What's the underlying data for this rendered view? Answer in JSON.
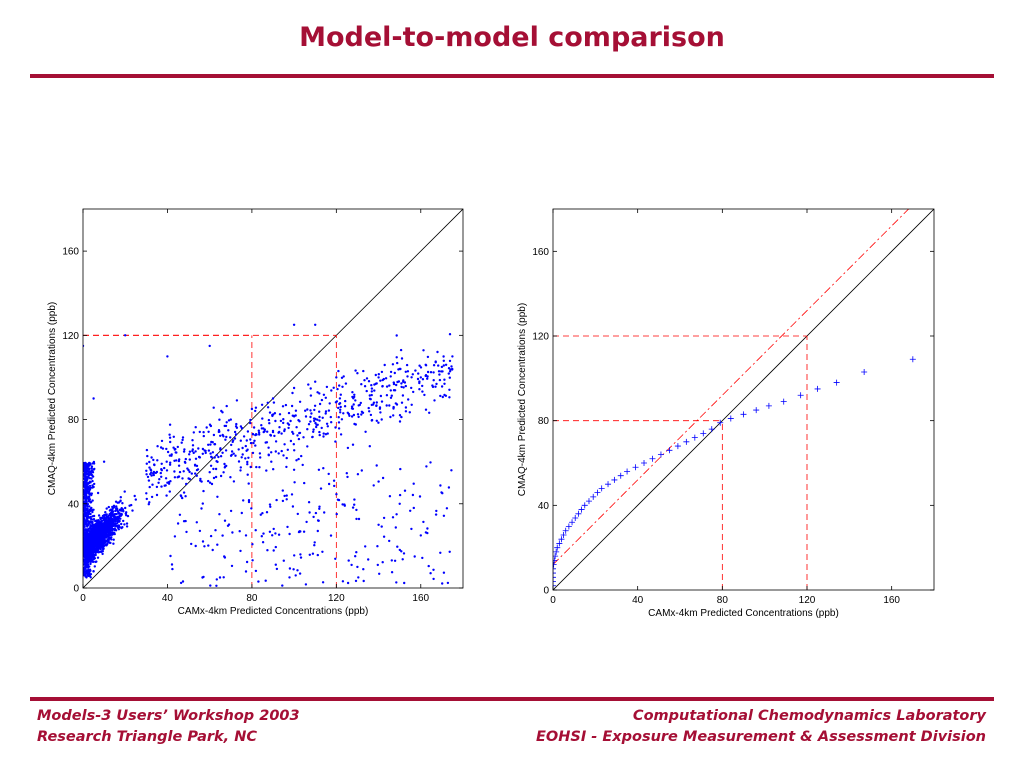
{
  "slide": {
    "title": "Model-to-model comparison",
    "footer_left": [
      "Models-3 Users’ Workshop 2003",
      "Research Triangle Park, NC"
    ],
    "footer_right": [
      "Computational Chemodynamics Laboratory",
      "EOHSI - Exposure Measurement & Assessment Division"
    ],
    "accent_color": "#a50f35"
  },
  "chart_data": [
    {
      "type": "scatter",
      "xlabel": "CAMx-4km Predicted Concentrations (ppb)",
      "ylabel": "CMAQ-4km Predicted Concentrations (ppb)",
      "xlim": [
        0,
        180
      ],
      "ylim": [
        0,
        180
      ],
      "xticks": [
        0,
        40,
        80,
        120,
        160
      ],
      "yticks": [
        0,
        40,
        80,
        120,
        160
      ],
      "marker": "dot",
      "marker_color": "#0000ff",
      "reference_lines": [
        {
          "kind": "1:1 line",
          "color": "#000000",
          "style": "solid"
        },
        {
          "kind": "threshold",
          "x": 80,
          "y": 120,
          "color": "#ff0000",
          "style": "dashed"
        },
        {
          "kind": "threshold",
          "x": 120,
          "y": 120,
          "color": "#ff0000",
          "style": "dashed"
        }
      ],
      "series": [
        {
          "values_sample": [
            [
              5,
              8
            ],
            [
              10,
              20
            ],
            [
              15,
              30
            ],
            [
              20,
              38
            ],
            [
              25,
              42
            ],
            [
              30,
              45
            ],
            [
              35,
              48
            ],
            [
              40,
              50
            ],
            [
              50,
              52
            ],
            [
              60,
              55
            ],
            [
              70,
              80
            ],
            [
              80,
              85
            ],
            [
              90,
              90
            ],
            [
              100,
              95
            ],
            [
              110,
              98
            ],
            [
              120,
              100
            ],
            [
              130,
              102
            ],
            [
              140,
              100
            ],
            [
              150,
              104
            ],
            [
              160,
              100
            ],
            [
              170,
              105
            ],
            [
              175,
              110
            ],
            [
              20,
              120
            ],
            [
              40,
              110
            ],
            [
              60,
              115
            ],
            [
              100,
              125
            ],
            [
              110,
              125
            ],
            [
              130,
              10
            ],
            [
              140,
              30
            ],
            [
              150,
              40
            ],
            [
              160,
              25
            ],
            [
              10,
              60
            ],
            [
              5,
              90
            ],
            [
              0,
              115
            ]
          ],
          "distribution": "dense cloud near origin, spreading to 0-180 ppb; ~3000 points"
        }
      ]
    },
    {
      "type": "scatter",
      "subtype": "quantile-quantile",
      "xlabel": "CAMx-4km Predicted Concentrations (ppb)",
      "ylabel": "CMAQ-4km Predicted Concentrations (ppb)",
      "xlim": [
        0,
        180
      ],
      "ylim": [
        0,
        180
      ],
      "xticks": [
        0,
        40,
        80,
        120,
        160
      ],
      "yticks": [
        0,
        40,
        80,
        120,
        160
      ],
      "marker": "plus",
      "marker_color": "#0000ff",
      "reference_lines": [
        {
          "kind": "1:1 line",
          "color": "#000000",
          "style": "solid"
        },
        {
          "kind": "offset line",
          "slope": 1,
          "intercept": 12,
          "color": "#ff0000",
          "style": "dash-dot"
        },
        {
          "kind": "threshold",
          "x": 80,
          "y": 80,
          "color": "#ff0000",
          "style": "dashed"
        },
        {
          "kind": "threshold",
          "x": 120,
          "y": 120,
          "color": "#ff0000",
          "style": "dashed"
        }
      ],
      "series": [
        {
          "points": [
            [
              0,
              0
            ],
            [
              0,
              2
            ],
            [
              0,
              4
            ],
            [
              0,
              6
            ],
            [
              0,
              8
            ],
            [
              0,
              10
            ],
            [
              0.3,
              12
            ],
            [
              0.6,
              14
            ],
            [
              1,
              16
            ],
            [
              1.5,
              18
            ],
            [
              2,
              20
            ],
            [
              3,
              22
            ],
            [
              4,
              24
            ],
            [
              5,
              26
            ],
            [
              6,
              28
            ],
            [
              7.5,
              30
            ],
            [
              9,
              32
            ],
            [
              10.5,
              34
            ],
            [
              12,
              36
            ],
            [
              13.5,
              38
            ],
            [
              15,
              40
            ],
            [
              17,
              42
            ],
            [
              19,
              44
            ],
            [
              21,
              46
            ],
            [
              23,
              48
            ],
            [
              26,
              50
            ],
            [
              29,
              52
            ],
            [
              32,
              54
            ],
            [
              35,
              56
            ],
            [
              39,
              58
            ],
            [
              43,
              60
            ],
            [
              47,
              62
            ],
            [
              51,
              64
            ],
            [
              55,
              66
            ],
            [
              59,
              68
            ],
            [
              63,
              70
            ],
            [
              67,
              72
            ],
            [
              71,
              74
            ],
            [
              75,
              76
            ],
            [
              79,
              79
            ],
            [
              84,
              81
            ],
            [
              90,
              83
            ],
            [
              96,
              85
            ],
            [
              102,
              87
            ],
            [
              109,
              89
            ],
            [
              117,
              92
            ],
            [
              125,
              95
            ],
            [
              134,
              98
            ],
            [
              147,
              103
            ],
            [
              170,
              109
            ]
          ]
        }
      ]
    }
  ]
}
